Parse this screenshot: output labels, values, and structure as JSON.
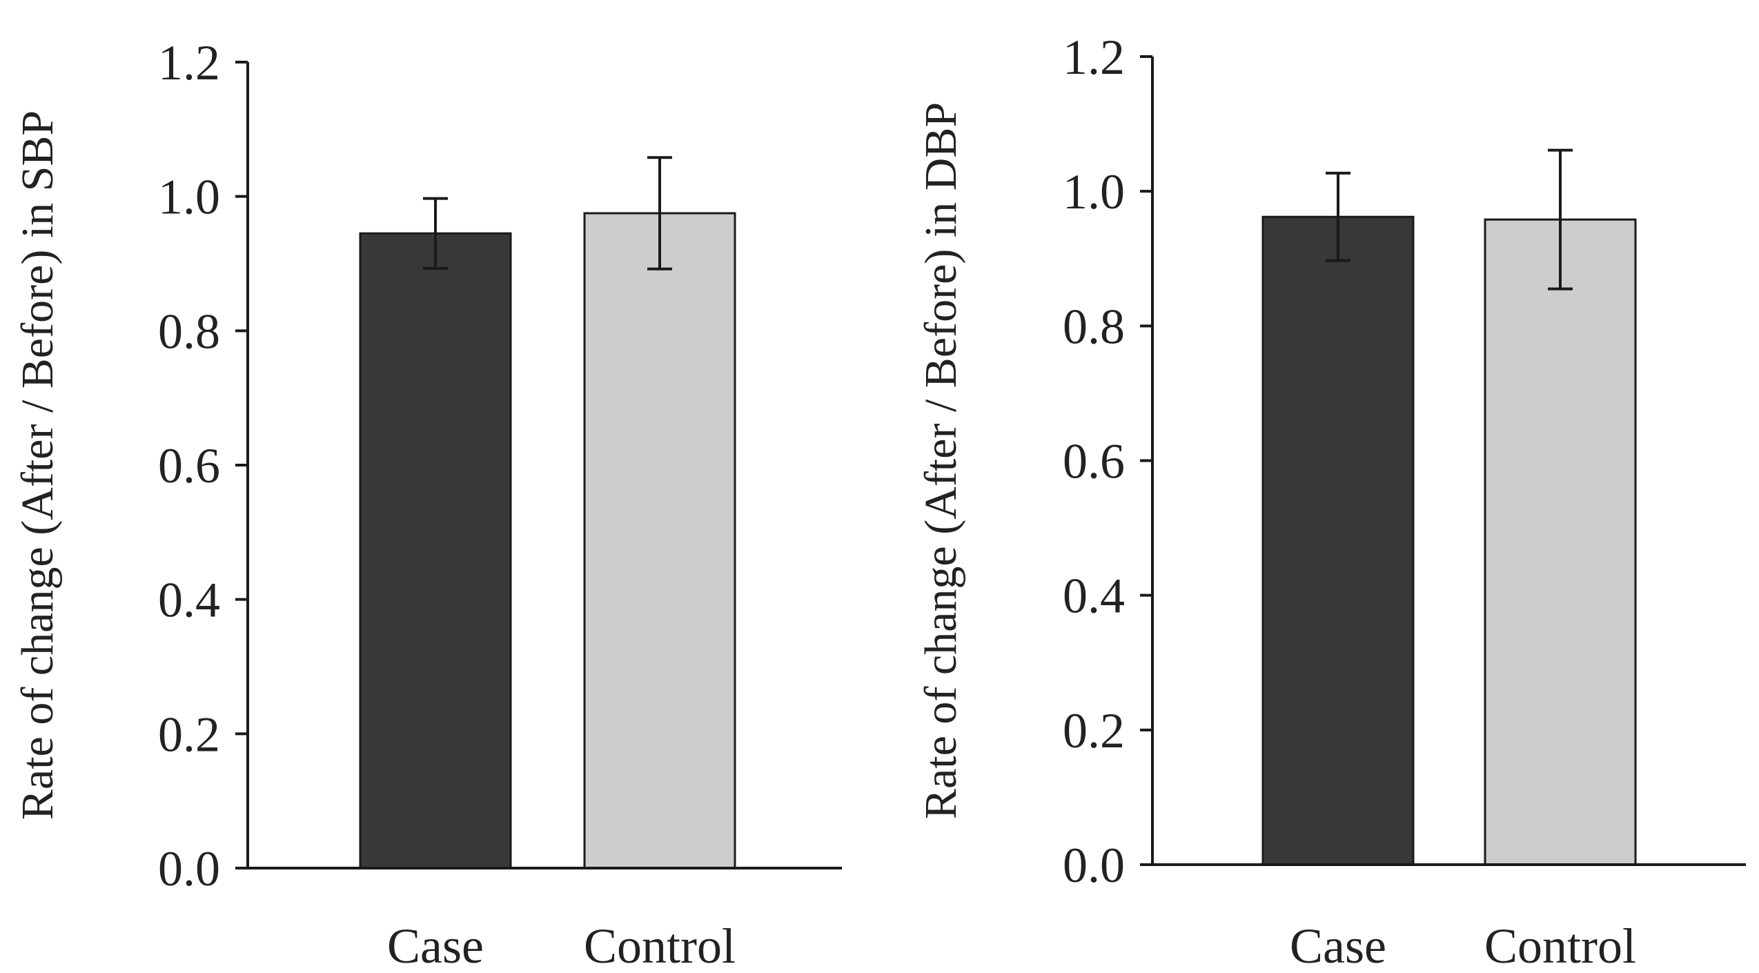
{
  "chart_data": [
    {
      "type": "bar",
      "categories": [
        "Case",
        "Control"
      ],
      "values": [
        0.945,
        0.975
      ],
      "errors": [
        0.052,
        0.083
      ],
      "colors": [
        "#383838",
        "#cdcdcd"
      ],
      "ylabel": "Rate of change (After / Before) in SBP",
      "xlabel": "",
      "ylim": [
        0.0,
        1.2
      ],
      "yticks": [
        "0.0",
        "0.2",
        "0.4",
        "0.6",
        "0.8",
        "1.0",
        "1.2"
      ],
      "grid": false
    },
    {
      "type": "bar",
      "categories": [
        "Case",
        "Control"
      ],
      "values": [
        0.962,
        0.958
      ],
      "errors": [
        0.065,
        0.103
      ],
      "colors": [
        "#383838",
        "#cdcdcd"
      ],
      "ylabel": "Rate of change (After / Before) in DBP",
      "xlabel": "",
      "ylim": [
        0.0,
        1.2
      ],
      "yticks": [
        "0.0",
        "0.2",
        "0.4",
        "0.6",
        "0.8",
        "1.0",
        "1.2"
      ],
      "grid": false
    }
  ]
}
